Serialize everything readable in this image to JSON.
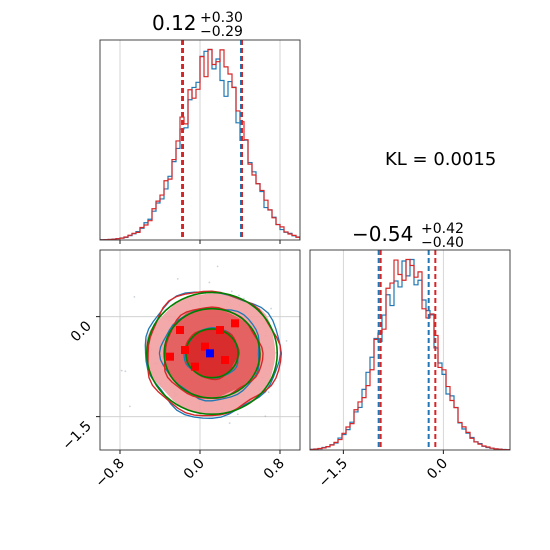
{
  "chart_data": {
    "type": "corner",
    "kl_text": "KL = 0.0015",
    "colors": {
      "blue": "#1f77b4",
      "red": "#d62728",
      "green": "#008000",
      "grid": "#cccccc",
      "marker_blue": "#0000ff",
      "marker_red": "#ff0000"
    },
    "parameters": [
      {
        "title_value": "0.12",
        "title_plus": "+0.30",
        "title_minus": "−0.29",
        "median": 0.12,
        "lower": -0.17,
        "upper": 0.42,
        "median_b": 0.12,
        "lower_b": -0.18,
        "upper_b": 0.41,
        "mean": 0.12,
        "sigma": 0.3,
        "range": [
          -1.0,
          1.0
        ],
        "ticks": [
          -0.8,
          0.0,
          0.8
        ],
        "tick_labels": [
          "−0.8",
          "0.0",
          "0.8"
        ]
      },
      {
        "title_value": "−0.54",
        "title_plus": "+0.42",
        "title_minus": "−0.40",
        "median": -0.54,
        "lower": -0.94,
        "upper": -0.12,
        "median_b": -0.54,
        "lower_b": -0.97,
        "upper_b": -0.22,
        "mean": -0.55,
        "sigma": 0.42,
        "range": [
          -2.0,
          1.0
        ],
        "ticks": [
          -1.5,
          0.0
        ],
        "tick_labels": [
          "−1.5",
          "0.0"
        ]
      }
    ],
    "red_markers": [
      [
        -0.2,
        -0.2
      ],
      [
        0.2,
        -0.2
      ],
      [
        0.35,
        -0.1
      ],
      [
        -0.15,
        -0.5
      ],
      [
        0.05,
        -0.45
      ],
      [
        -0.3,
        -0.6
      ],
      [
        0.25,
        -0.65
      ],
      [
        -0.05,
        -0.75
      ]
    ],
    "blue_markers": [
      [
        0.1,
        -0.55
      ]
    ],
    "contour_levels_sigma": [
      0.6,
      1.1,
      1.5
    ]
  }
}
